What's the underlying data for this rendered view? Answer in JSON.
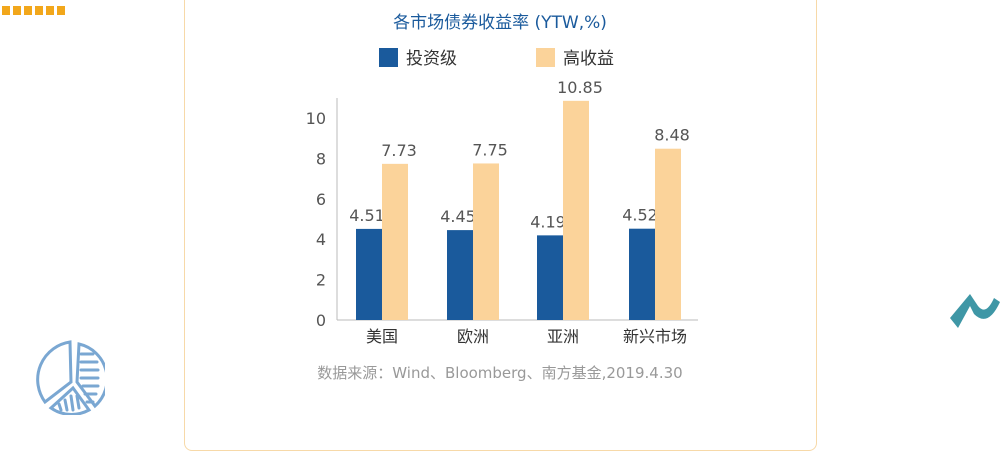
{
  "chart_data": {
    "type": "bar",
    "title": "各市场债券收益率 (YTW,%)",
    "categories": [
      "美国",
      "欧洲",
      "亚洲",
      "新兴市场"
    ],
    "series": [
      {
        "name": "投资级",
        "color": "#1a5a9c",
        "values": [
          4.51,
          4.45,
          4.19,
          4.52
        ],
        "labels": [
          "4.51",
          "4.45",
          "4.19",
          "4.52"
        ]
      },
      {
        "name": "高收益",
        "color": "#fbd39a",
        "values": [
          7.73,
          7.75,
          10.85,
          8.48
        ],
        "labels": [
          "7.73",
          "7.75",
          "10.85",
          "8.48"
        ]
      }
    ],
    "yticks": [
      "0",
      "2",
      "4",
      "6",
      "8",
      "10"
    ],
    "ylim": [
      0,
      10
    ],
    "xlabel": "",
    "ylabel": "",
    "legend": "top",
    "source": "数据来源：Wind、Bloomberg、南方基金,2019.4.30"
  }
}
